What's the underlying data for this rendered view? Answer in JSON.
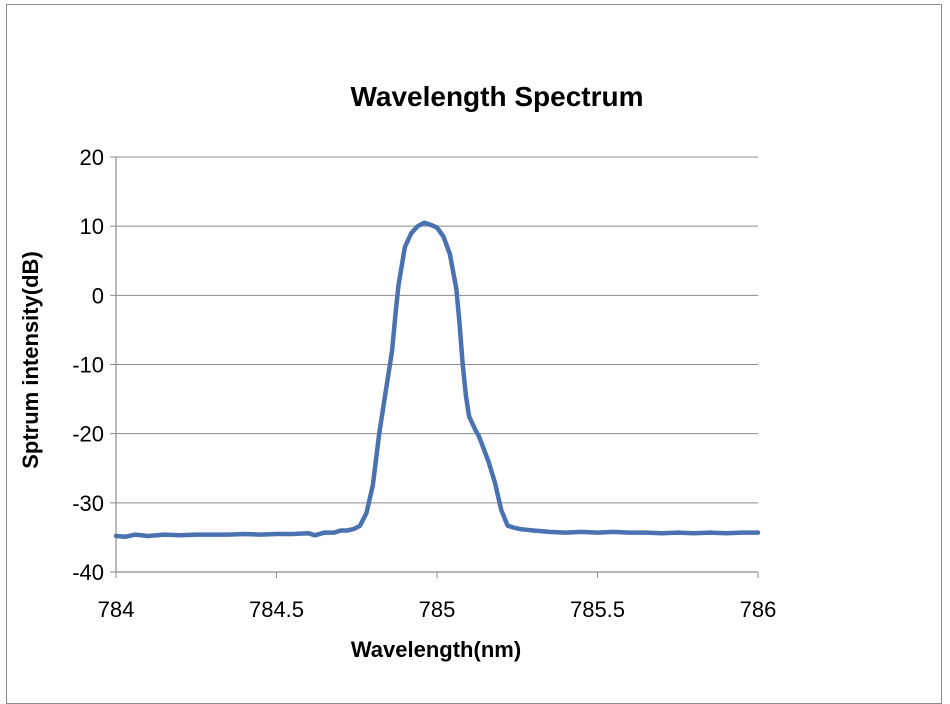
{
  "chart_data": {
    "type": "line",
    "title": "Wavelength Spectrum",
    "xlabel": "Wavelength(nm)",
    "ylabel": "Sptrum  intensity(dB)",
    "xlim": [
      784,
      786
    ],
    "ylim": [
      -40,
      20
    ],
    "xticks": [
      784,
      784.5,
      785,
      785.5,
      786
    ],
    "xtick_labels": [
      "784",
      "784.5",
      "785",
      "785.5",
      "786"
    ],
    "yticks": [
      -40,
      -30,
      -20,
      -10,
      0,
      10,
      20
    ],
    "ytick_labels": [
      "-40",
      "-30",
      "-20",
      "-10",
      "0",
      "10",
      "20"
    ],
    "grid": "horizontal",
    "legend": "none",
    "series_color": "#4a72b0",
    "series": [
      {
        "x": [
          784.0,
          784.03,
          784.06,
          784.1,
          784.15,
          784.2,
          784.25,
          784.3,
          784.35,
          784.4,
          784.45,
          784.5,
          784.55,
          784.6,
          784.62,
          784.65,
          784.68,
          784.7,
          784.72,
          784.74,
          784.76,
          784.78,
          784.8,
          784.82,
          784.84,
          784.86,
          784.87,
          784.88,
          784.9,
          784.92,
          784.94,
          784.96,
          784.98,
          785.0,
          785.02,
          785.04,
          785.06,
          785.07,
          785.08,
          785.09,
          785.1,
          785.11,
          785.12,
          785.13,
          785.14,
          785.16,
          785.18,
          785.2,
          785.22,
          785.24,
          785.26,
          785.28,
          785.3,
          785.35,
          785.4,
          785.45,
          785.5,
          785.55,
          785.6,
          785.65,
          785.7,
          785.75,
          785.8,
          785.85,
          785.9,
          785.95,
          786.0
        ],
        "y": [
          -34.8,
          -34.9,
          -34.6,
          -34.8,
          -34.6,
          -34.7,
          -34.6,
          -34.6,
          -34.6,
          -34.5,
          -34.6,
          -34.5,
          -34.5,
          -34.4,
          -34.7,
          -34.3,
          -34.3,
          -34.0,
          -34.0,
          -33.8,
          -33.3,
          -31.5,
          -27.5,
          -20.0,
          -14.0,
          -8.0,
          -3.0,
          1.5,
          7.0,
          9.0,
          10.0,
          10.5,
          10.2,
          9.8,
          8.5,
          6.0,
          1.0,
          -4.0,
          -10.0,
          -14.5,
          -17.5,
          -18.5,
          -19.5,
          -20.3,
          -21.5,
          -24.0,
          -27.0,
          -31.0,
          -33.3,
          -33.6,
          -33.8,
          -33.9,
          -34.0,
          -34.2,
          -34.3,
          -34.2,
          -34.3,
          -34.2,
          -34.3,
          -34.3,
          -34.4,
          -34.3,
          -34.4,
          -34.3,
          -34.4,
          -34.3,
          -34.3
        ]
      }
    ]
  }
}
